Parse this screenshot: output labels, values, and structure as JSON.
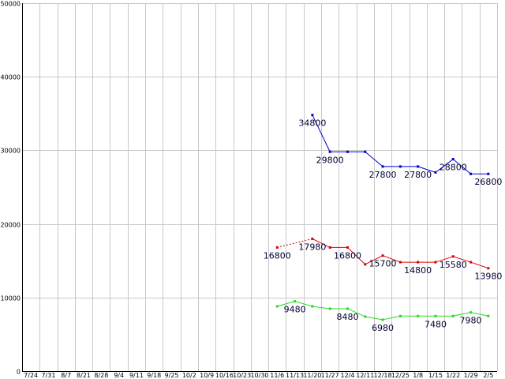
{
  "chart_data": {
    "type": "line",
    "title": "",
    "xlabel": "",
    "ylabel": "",
    "ylim": [
      0,
      50000
    ],
    "yticks": [
      0,
      10000,
      20000,
      30000,
      40000,
      50000
    ],
    "grid": true,
    "categories": [
      "7/24",
      "7/31",
      "8/7",
      "8/21",
      "8/28",
      "9/4",
      "9/11",
      "9/18",
      "9/25",
      "10/2",
      "10/9",
      "10/16",
      "10/23",
      "10/30",
      "11/6",
      "11/13",
      "11/20",
      "11/27",
      "12/4",
      "12/11",
      "12/18",
      "12/25",
      "1/8",
      "1/15",
      "1/22",
      "1/29",
      "2/5"
    ],
    "series": [
      {
        "color": "#0000cc",
        "values": [
          null,
          null,
          null,
          null,
          null,
          null,
          null,
          null,
          null,
          null,
          null,
          null,
          null,
          null,
          null,
          null,
          34800,
          29800,
          29800,
          29800,
          27800,
          27800,
          27800,
          27000,
          28800,
          26800,
          26800
        ],
        "dashed_until": null,
        "labels": [
          {
            "index": 16,
            "text": "34800",
            "pos": "below"
          },
          {
            "index": 17,
            "text": "29800",
            "pos": "below"
          },
          {
            "index": 20,
            "text": "27800",
            "pos": "below"
          },
          {
            "index": 22,
            "text": "27800",
            "pos": "below"
          },
          {
            "index": 24,
            "text": "28800",
            "pos": "below"
          },
          {
            "index": 26,
            "text": "26800",
            "pos": "below"
          }
        ]
      },
      {
        "color": "#dd0000",
        "values": [
          null,
          null,
          null,
          null,
          null,
          null,
          null,
          null,
          null,
          null,
          null,
          null,
          null,
          null,
          16800,
          null,
          17980,
          16800,
          16800,
          14500,
          15700,
          14800,
          14800,
          14800,
          15580,
          14800,
          13980
        ],
        "dashed_until": 16,
        "labels": [
          {
            "index": 14,
            "text": "16800",
            "pos": "below"
          },
          {
            "index": 16,
            "text": "17980",
            "pos": "below"
          },
          {
            "index": 18,
            "text": "16800",
            "pos": "below"
          },
          {
            "index": 20,
            "text": "15700",
            "pos": "below"
          },
          {
            "index": 22,
            "text": "14800",
            "pos": "below"
          },
          {
            "index": 24,
            "text": "15580",
            "pos": "below"
          },
          {
            "index": 26,
            "text": "13980",
            "pos": "below"
          }
        ]
      },
      {
        "color": "#22dd22",
        "values": [
          null,
          null,
          null,
          null,
          null,
          null,
          null,
          null,
          null,
          null,
          null,
          null,
          null,
          null,
          8800,
          9480,
          8800,
          8480,
          8480,
          7400,
          6980,
          7480,
          7480,
          7480,
          7480,
          7980,
          7480
        ],
        "dashed_until": null,
        "labels": [
          {
            "index": 15,
            "text": "9480",
            "pos": "below"
          },
          {
            "index": 18,
            "text": "8480",
            "pos": "below"
          },
          {
            "index": 20,
            "text": "6980",
            "pos": "below"
          },
          {
            "index": 23,
            "text": "7480",
            "pos": "below"
          },
          {
            "index": 25,
            "text": "7980",
            "pos": "below"
          }
        ]
      }
    ]
  }
}
